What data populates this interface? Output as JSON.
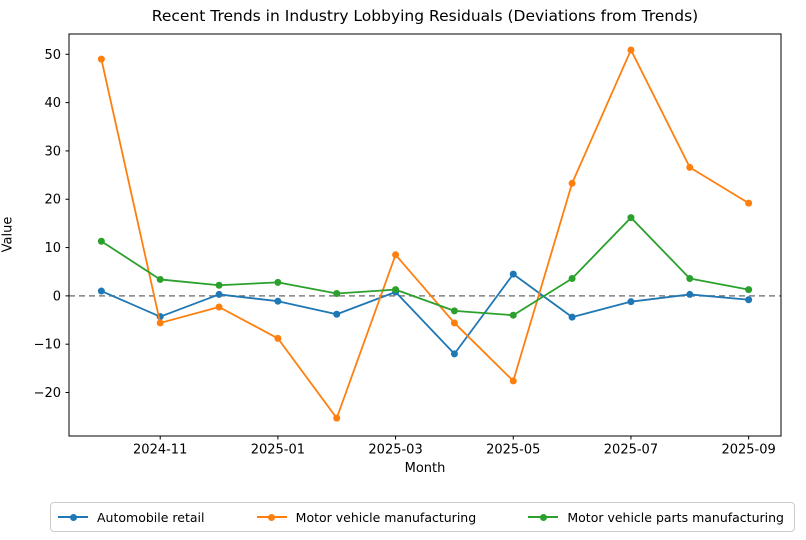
{
  "title": "Recent Trends in Industry Lobbying Residuals (Deviations from Trends)",
  "chart_data": {
    "type": "line",
    "title": "Recent Trends in Industry Lobbying Residuals (Deviations from Trends)",
    "xlabel": "Month",
    "ylabel": "Value",
    "x": [
      "2024-10",
      "2024-11",
      "2024-12",
      "2025-01",
      "2025-02",
      "2025-03",
      "2025-04",
      "2025-05",
      "2025-06",
      "2025-07",
      "2025-08",
      "2025-09"
    ],
    "x_tick_indices": [
      1,
      3,
      5,
      7,
      9,
      11
    ],
    "x_tick_labels": [
      "2024-11",
      "2025-01",
      "2025-03",
      "2025-05",
      "2025-07",
      "2025-09"
    ],
    "y_ticks": [
      50,
      40,
      30,
      20,
      10,
      0,
      -10,
      -20
    ],
    "y_tick_labels": [
      "50",
      "40",
      "30",
      "20",
      "10",
      "0",
      "−10",
      "−20"
    ],
    "ylim": [
      -29.0,
      54.2
    ],
    "xlim_index": [
      -0.55,
      11.55
    ],
    "grid": false,
    "zero_line": {
      "value": 0,
      "style": "dashed",
      "color": "#808080"
    },
    "legend_position": "bottom-outside",
    "axis_color": "#000000",
    "background_color": "#ffffff",
    "series": [
      {
        "name": "Automobile retail",
        "color": "#1f77b4",
        "values": [
          1.0,
          -4.3,
          0.3,
          -1.1,
          -3.8,
          0.8,
          -12.0,
          4.5,
          -4.4,
          -1.2,
          0.3,
          -0.8
        ]
      },
      {
        "name": "Motor vehicle manufacturing",
        "color": "#ff7f0e",
        "values": [
          49.0,
          -5.6,
          -2.3,
          -8.8,
          -25.3,
          8.5,
          -5.6,
          -17.6,
          23.3,
          50.9,
          26.6,
          19.2
        ]
      },
      {
        "name": "Motor vehicle parts manufacturing",
        "color": "#2ca02c",
        "values": [
          11.3,
          3.4,
          2.2,
          2.8,
          0.5,
          1.3,
          -3.1,
          -4.0,
          3.6,
          16.2,
          3.6,
          1.3
        ]
      }
    ]
  }
}
